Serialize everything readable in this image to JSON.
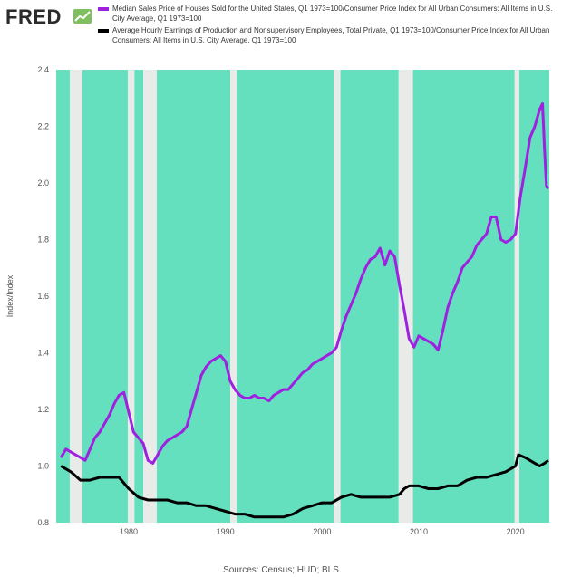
{
  "header": {
    "logo_text": "FRED"
  },
  "colors": {
    "recession": "#64e0bf",
    "gap": "#e9ebe8",
    "house_price": "#a020e0",
    "earnings": "#000000"
  },
  "footer": {
    "sources": "Sources: Census; HUD; BLS"
  },
  "chart_data": {
    "type": "line",
    "title": "",
    "xlabel": "",
    "ylabel": "Index/Index",
    "xlim": [
      1972.5,
      2023.5
    ],
    "ylim": [
      0.8,
      2.4
    ],
    "yticks": [
      "0.8",
      "1.0",
      "1.2",
      "1.4",
      "1.6",
      "1.8",
      "2.0",
      "2.2",
      "2.4"
    ],
    "xticks": [
      "1980",
      "1990",
      "2000",
      "2010",
      "2020"
    ],
    "grid": false,
    "legend": "top",
    "shaded_bands": [
      [
        1972.5,
        1973.9
      ],
      [
        1975.2,
        1979.9
      ],
      [
        1980.6,
        1981.5
      ],
      [
        1982.9,
        1990.5
      ],
      [
        1991.2,
        2001.2
      ],
      [
        2001.9,
        2007.9
      ],
      [
        2009.4,
        2019.9
      ],
      [
        2020.4,
        2023.5
      ]
    ],
    "series": [
      {
        "name": "Median Sales Price of Houses Sold for the United States, Q1 1973=100/Consumer Price Index for All Urban Consumers: All Items in U.S. City Average, Q1 1973=100",
        "color": "#a020e0",
        "points": [
          [
            1973.0,
            1.03
          ],
          [
            1973.5,
            1.06
          ],
          [
            1974.0,
            1.05
          ],
          [
            1974.5,
            1.04
          ],
          [
            1975.0,
            1.03
          ],
          [
            1975.5,
            1.02
          ],
          [
            1976.0,
            1.06
          ],
          [
            1976.5,
            1.1
          ],
          [
            1977.0,
            1.12
          ],
          [
            1977.5,
            1.15
          ],
          [
            1978.0,
            1.18
          ],
          [
            1978.5,
            1.22
          ],
          [
            1979.0,
            1.25
          ],
          [
            1979.5,
            1.26
          ],
          [
            1980.0,
            1.19
          ],
          [
            1980.5,
            1.12
          ],
          [
            1981.0,
            1.1
          ],
          [
            1981.5,
            1.08
          ],
          [
            1982.0,
            1.02
          ],
          [
            1982.5,
            1.01
          ],
          [
            1983.0,
            1.04
          ],
          [
            1983.5,
            1.07
          ],
          [
            1984.0,
            1.09
          ],
          [
            1984.5,
            1.1
          ],
          [
            1985.0,
            1.11
          ],
          [
            1985.5,
            1.12
          ],
          [
            1986.0,
            1.14
          ],
          [
            1986.5,
            1.2
          ],
          [
            1987.0,
            1.26
          ],
          [
            1987.5,
            1.32
          ],
          [
            1988.0,
            1.35
          ],
          [
            1988.5,
            1.37
          ],
          [
            1989.0,
            1.38
          ],
          [
            1989.5,
            1.39
          ],
          [
            1990.0,
            1.37
          ],
          [
            1990.5,
            1.3
          ],
          [
            1991.0,
            1.27
          ],
          [
            1991.5,
            1.25
          ],
          [
            1992.0,
            1.24
          ],
          [
            1992.5,
            1.24
          ],
          [
            1993.0,
            1.25
          ],
          [
            1993.5,
            1.24
          ],
          [
            1994.0,
            1.24
          ],
          [
            1994.5,
            1.23
          ],
          [
            1995.0,
            1.25
          ],
          [
            1995.5,
            1.26
          ],
          [
            1996.0,
            1.27
          ],
          [
            1996.5,
            1.27
          ],
          [
            1997.0,
            1.29
          ],
          [
            1997.5,
            1.31
          ],
          [
            1998.0,
            1.33
          ],
          [
            1998.5,
            1.34
          ],
          [
            1999.0,
            1.36
          ],
          [
            1999.5,
            1.37
          ],
          [
            2000.0,
            1.38
          ],
          [
            2000.5,
            1.39
          ],
          [
            2001.0,
            1.4
          ],
          [
            2001.5,
            1.42
          ],
          [
            2002.0,
            1.48
          ],
          [
            2002.5,
            1.53
          ],
          [
            2003.0,
            1.57
          ],
          [
            2003.5,
            1.61
          ],
          [
            2004.0,
            1.66
          ],
          [
            2004.5,
            1.7
          ],
          [
            2005.0,
            1.73
          ],
          [
            2005.5,
            1.74
          ],
          [
            2006.0,
            1.77
          ],
          [
            2006.5,
            1.71
          ],
          [
            2007.0,
            1.76
          ],
          [
            2007.5,
            1.74
          ],
          [
            2008.0,
            1.64
          ],
          [
            2008.5,
            1.55
          ],
          [
            2009.0,
            1.45
          ],
          [
            2009.5,
            1.42
          ],
          [
            2010.0,
            1.46
          ],
          [
            2010.5,
            1.45
          ],
          [
            2011.0,
            1.44
          ],
          [
            2011.5,
            1.43
          ],
          [
            2012.0,
            1.41
          ],
          [
            2012.5,
            1.48
          ],
          [
            2013.0,
            1.56
          ],
          [
            2013.5,
            1.61
          ],
          [
            2014.0,
            1.65
          ],
          [
            2014.5,
            1.7
          ],
          [
            2015.0,
            1.72
          ],
          [
            2015.5,
            1.74
          ],
          [
            2016.0,
            1.78
          ],
          [
            2016.5,
            1.8
          ],
          [
            2017.0,
            1.82
          ],
          [
            2017.5,
            1.88
          ],
          [
            2018.0,
            1.88
          ],
          [
            2018.5,
            1.8
          ],
          [
            2019.0,
            1.79
          ],
          [
            2019.5,
            1.8
          ],
          [
            2020.0,
            1.82
          ],
          [
            2020.5,
            1.95
          ],
          [
            2021.0,
            2.05
          ],
          [
            2021.5,
            2.16
          ],
          [
            2022.0,
            2.2
          ],
          [
            2022.5,
            2.26
          ],
          [
            2022.8,
            2.28
          ],
          [
            2023.0,
            2.12
          ],
          [
            2023.2,
            1.99
          ],
          [
            2023.4,
            1.98
          ]
        ]
      },
      {
        "name": "Average Hourly Earnings of Production and Nonsupervisory Employees, Total Private, Q1 1973=100/Consumer Price Index for All Urban Consumers: All Items in U.S. City Average, Q1 1973=100",
        "color": "#000000",
        "points": [
          [
            1973.0,
            1.0
          ],
          [
            1974.0,
            0.98
          ],
          [
            1975.0,
            0.95
          ],
          [
            1976.0,
            0.95
          ],
          [
            1977.0,
            0.96
          ],
          [
            1978.0,
            0.96
          ],
          [
            1979.0,
            0.96
          ],
          [
            1980.0,
            0.92
          ],
          [
            1981.0,
            0.89
          ],
          [
            1982.0,
            0.88
          ],
          [
            1983.0,
            0.88
          ],
          [
            1984.0,
            0.88
          ],
          [
            1985.0,
            0.87
          ],
          [
            1986.0,
            0.87
          ],
          [
            1987.0,
            0.86
          ],
          [
            1988.0,
            0.86
          ],
          [
            1989.0,
            0.85
          ],
          [
            1990.0,
            0.84
          ],
          [
            1991.0,
            0.83
          ],
          [
            1992.0,
            0.83
          ],
          [
            1993.0,
            0.82
          ],
          [
            1994.0,
            0.82
          ],
          [
            1995.0,
            0.82
          ],
          [
            1996.0,
            0.82
          ],
          [
            1997.0,
            0.83
          ],
          [
            1998.0,
            0.85
          ],
          [
            1999.0,
            0.86
          ],
          [
            2000.0,
            0.87
          ],
          [
            2001.0,
            0.87
          ],
          [
            2002.0,
            0.89
          ],
          [
            2003.0,
            0.9
          ],
          [
            2004.0,
            0.89
          ],
          [
            2005.0,
            0.89
          ],
          [
            2006.0,
            0.89
          ],
          [
            2007.0,
            0.89
          ],
          [
            2008.0,
            0.9
          ],
          [
            2008.5,
            0.92
          ],
          [
            2009.0,
            0.93
          ],
          [
            2010.0,
            0.93
          ],
          [
            2011.0,
            0.92
          ],
          [
            2012.0,
            0.92
          ],
          [
            2013.0,
            0.93
          ],
          [
            2014.0,
            0.93
          ],
          [
            2015.0,
            0.95
          ],
          [
            2016.0,
            0.96
          ],
          [
            2017.0,
            0.96
          ],
          [
            2018.0,
            0.97
          ],
          [
            2019.0,
            0.98
          ],
          [
            2020.0,
            1.0
          ],
          [
            2020.3,
            1.04
          ],
          [
            2021.0,
            1.03
          ],
          [
            2021.5,
            1.02
          ],
          [
            2022.0,
            1.01
          ],
          [
            2022.5,
            1.0
          ],
          [
            2023.0,
            1.01
          ],
          [
            2023.4,
            1.02
          ]
        ]
      }
    ]
  }
}
